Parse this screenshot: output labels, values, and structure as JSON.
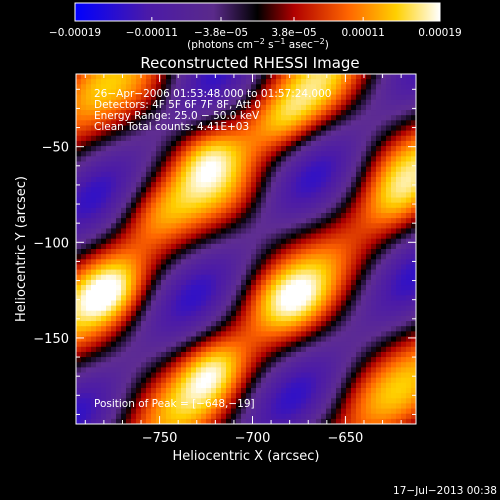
{
  "chart_data": {
    "type": "heatmap",
    "title": "Reconstructed RHESSI Image",
    "xlabel": "Heliocentric X (arcsec)",
    "ylabel": "Heliocentric Y (arcsec)",
    "xlim": [
      -795,
      -612
    ],
    "ylim": [
      -195,
      -12
    ],
    "x_ticks": [
      {
        "value": -750,
        "label": "−750"
      },
      {
        "value": -700,
        "label": "−700"
      },
      {
        "value": -650,
        "label": "−650"
      }
    ],
    "y_ticks": [
      {
        "value": -50,
        "label": "−50"
      },
      {
        "value": -100,
        "label": "−100"
      },
      {
        "value": -150,
        "label": "−150"
      }
    ],
    "colorbar": {
      "min": -0.00019,
      "max": 0.00019,
      "ticks": [
        {
          "value": -0.00019,
          "label": "−0.00019"
        },
        {
          "value": -0.00011,
          "label": "−0.00011"
        },
        {
          "value": -3.8e-05,
          "label": "−3.8e−05"
        },
        {
          "value": 3.8e-05,
          "label": "3.8e−05"
        },
        {
          "value": 0.00011,
          "label": "0.00011"
        },
        {
          "value": 0.00019,
          "label": "0.00019"
        }
      ],
      "units_prefix": "(photons cm",
      "units_sup1": "−2",
      "units_mid": " s",
      "units_sup2": "−1",
      "units_suffix": " asec",
      "units_sup3": "−2",
      "units_close": ")"
    },
    "annotations": [
      "26−Apr−2006 01:53:48.000 to 01:57:24.000",
      "Detectors: 4F 5F 6F 7F 8F, Att 0",
      "Energy Range: 25.0 − 50.0 keV",
      "Clean    Total counts: 4.41E+03"
    ],
    "peak_label": "Position of Peak = [−648,−19]",
    "peak": {
      "x": -648,
      "y": -19
    },
    "timestamp": "17−Jul−2013 00:38"
  }
}
